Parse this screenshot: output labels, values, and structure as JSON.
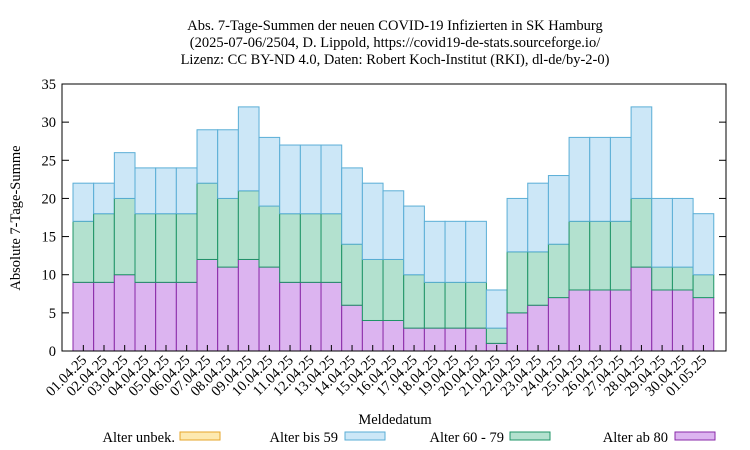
{
  "chart_data": {
    "type": "bar",
    "stacked": true,
    "title": [
      "Abs. 7-Tage-Summen der neuen COVID-19 Infizierten in SK Hamburg",
      "(2025-07-06/2504, D. Lippold, https://covid19-de-stats.sourceforge.io/",
      "Lizenz: CC BY-ND 4.0, Daten: Robert Koch-Institut (RKI), dl-de/by-2-0)"
    ],
    "xlabel": "Meldedatum",
    "ylabel": "Absolute 7-Tage-Summe",
    "ylim": [
      0,
      35
    ],
    "yticks": [
      "0",
      "5",
      "10",
      "15",
      "20",
      "25",
      "30",
      "35"
    ],
    "grid": false,
    "legend_position": "bottom",
    "categories": [
      "01.04.25",
      "02.04.25",
      "03.04.25",
      "04.04.25",
      "05.04.25",
      "06.04.25",
      "07.04.25",
      "08.04.25",
      "09.04.25",
      "10.04.25",
      "11.04.25",
      "12.04.25",
      "13.04.25",
      "14.04.25",
      "15.04.25",
      "16.04.25",
      "17.04.25",
      "18.04.25",
      "19.04.25",
      "20.04.25",
      "21.04.25",
      "22.04.25",
      "23.04.25",
      "24.04.25",
      "25.04.25",
      "26.04.25",
      "27.04.25",
      "28.04.25",
      "29.04.25",
      "30.04.25",
      "01.05.25"
    ],
    "series": [
      {
        "name": "Alter unbek.",
        "fill": "#fde9b0",
        "stroke": "#e6a52a",
        "values": [
          0,
          0,
          0,
          0,
          0,
          0,
          0,
          0,
          0,
          0,
          0,
          0,
          0,
          0,
          0,
          0,
          0,
          0,
          0,
          0,
          0,
          0,
          0,
          0,
          0,
          0,
          0,
          0,
          0,
          0,
          0
        ]
      },
      {
        "name": "Alter ab 80",
        "fill": "#dcb4f0",
        "stroke": "#8a2aa8",
        "values": [
          9,
          9,
          10,
          9,
          9,
          9,
          12,
          11,
          12,
          11,
          9,
          9,
          9,
          6,
          4,
          4,
          3,
          3,
          3,
          3,
          1,
          5,
          6,
          7,
          8,
          8,
          8,
          11,
          8,
          8,
          7
        ]
      },
      {
        "name": "Alter 60 - 79",
        "fill": "#b3e1cf",
        "stroke": "#1f9467",
        "values": [
          8,
          9,
          10,
          9,
          9,
          9,
          10,
          9,
          9,
          8,
          9,
          9,
          9,
          8,
          8,
          8,
          7,
          6,
          6,
          6,
          2,
          8,
          7,
          7,
          9,
          9,
          9,
          9,
          3,
          3,
          3
        ]
      },
      {
        "name": "Alter bis 59",
        "fill": "#cce7f7",
        "stroke": "#5aaed6",
        "values": [
          5,
          4,
          6,
          6,
          6,
          6,
          7,
          9,
          11,
          9,
          9,
          9,
          9,
          10,
          10,
          9,
          9,
          8,
          8,
          8,
          5,
          7,
          9,
          9,
          11,
          11,
          11,
          12,
          9,
          9,
          8
        ]
      }
    ],
    "legend_order": [
      "Alter unbek.",
      "Alter bis 59",
      "Alter 60 - 79",
      "Alter ab 80"
    ]
  }
}
